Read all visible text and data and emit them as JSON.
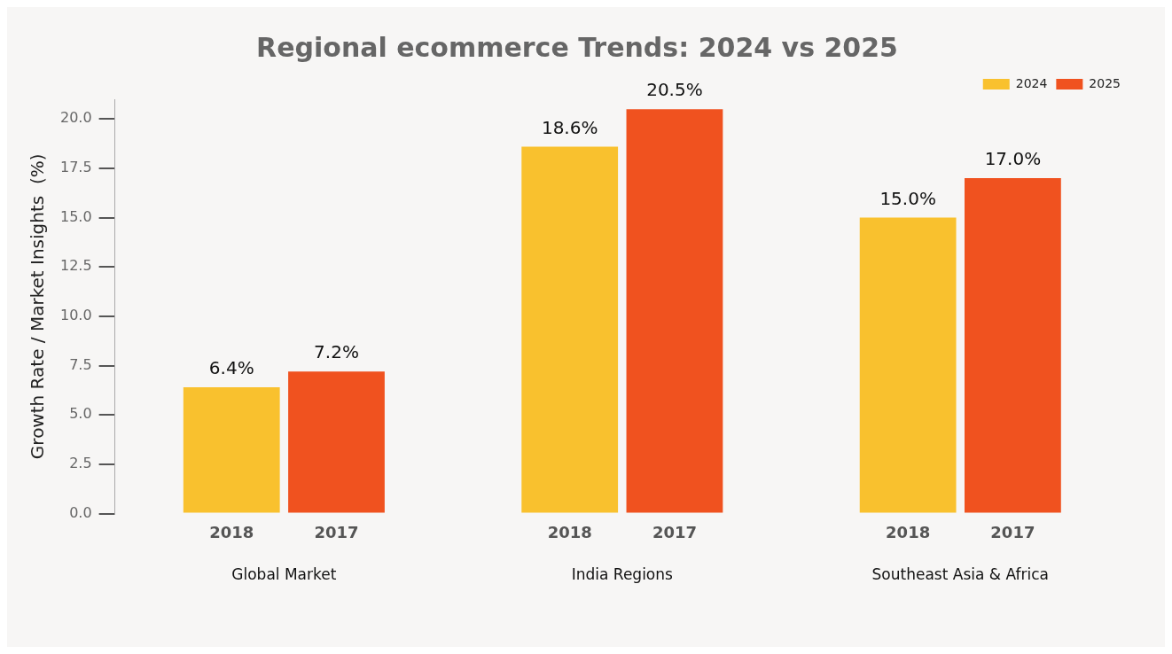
{
  "chart_data": {
    "type": "bar",
    "title": "Regional ecommerce Trends: 2024 vs 2025",
    "ylabel": "Growth Rate / Market Insights  (%)",
    "categories": [
      "Global Market",
      "India Regions",
      "Southeast Asia & Africa"
    ],
    "series": [
      {
        "name": "2024",
        "color": "#f9c12e",
        "values": [
          6.4,
          18.6,
          15.0
        ],
        "value_labels": [
          "6.4%",
          "18.6%",
          "15.0%"
        ]
      },
      {
        "name": "2025",
        "color": "#f0521f",
        "values": [
          7.2,
          20.5,
          17.0
        ],
        "value_labels": [
          "7.2%",
          "20.5%",
          "17.0%"
        ]
      }
    ],
    "annotations": [
      "2018",
      "2017",
      "2018",
      "2017",
      "2018",
      "2017"
    ],
    "ylim": [
      0,
      21
    ],
    "yticks": [
      {
        "value": 0,
        "label": "0.0"
      },
      {
        "value": 2.5,
        "label": "2.5"
      },
      {
        "value": 5,
        "label": "5.0"
      },
      {
        "value": 7.5,
        "label": "7.5"
      },
      {
        "value": 10,
        "label": "10.0"
      },
      {
        "value": 12.5,
        "label": "12.5"
      },
      {
        "value": 15,
        "label": "15.0"
      },
      {
        "value": 17.5,
        "label": "17.5"
      },
      {
        "value": 20,
        "label": "20.0"
      }
    ],
    "grid": false,
    "legend": "top right"
  }
}
